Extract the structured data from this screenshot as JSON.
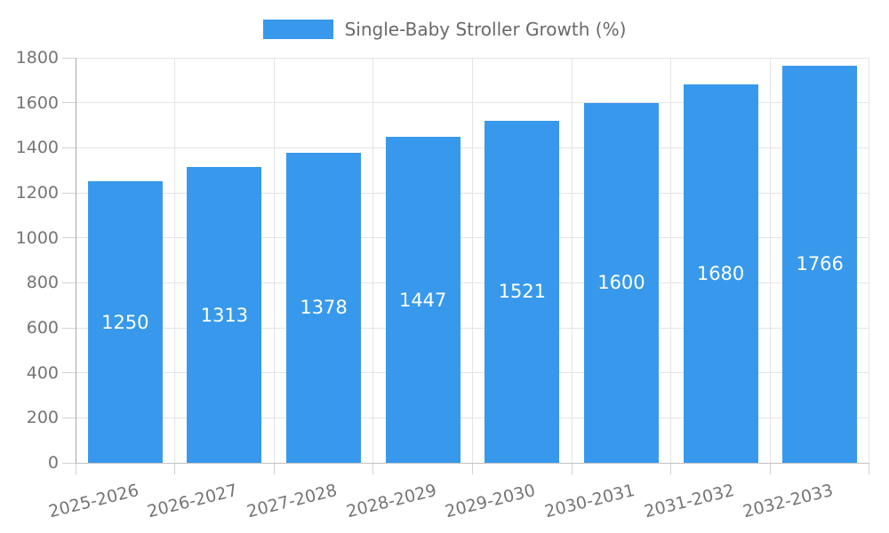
{
  "chart_data": {
    "type": "bar",
    "title": "",
    "legend": "Single-Baby Stroller Growth (%)",
    "legend_position": "top",
    "categories": [
      "2025-2026",
      "2026-2027",
      "2027-2028",
      "2028-2029",
      "2029-2030",
      "2030-2031",
      "2031-2032",
      "2032-2033"
    ],
    "series": [
      {
        "name": "Single-Baby Stroller Growth (%)",
        "values": [
          1250,
          1313,
          1378,
          1447,
          1521,
          1600,
          1680,
          1766
        ]
      }
    ],
    "value_label_position": "inside-center",
    "xlabel": "",
    "ylabel": "",
    "ylim": [
      0,
      1800
    ],
    "yticks": [
      0,
      200,
      400,
      600,
      800,
      1000,
      1200,
      1400,
      1600,
      1800
    ],
    "grid": true,
    "x_label_rotation_deg": -14,
    "colors": {
      "bar": "#3899EC",
      "grid": "#E4E4E4",
      "tick": "#D2D2D2",
      "y_axis_line": "#A8A8A8",
      "x_axis_line": "#C2C2C2",
      "axis_text": "#757575",
      "legend_text": "#696969",
      "value_text": "#FFFFFF",
      "background": "#FFFFFF"
    }
  }
}
